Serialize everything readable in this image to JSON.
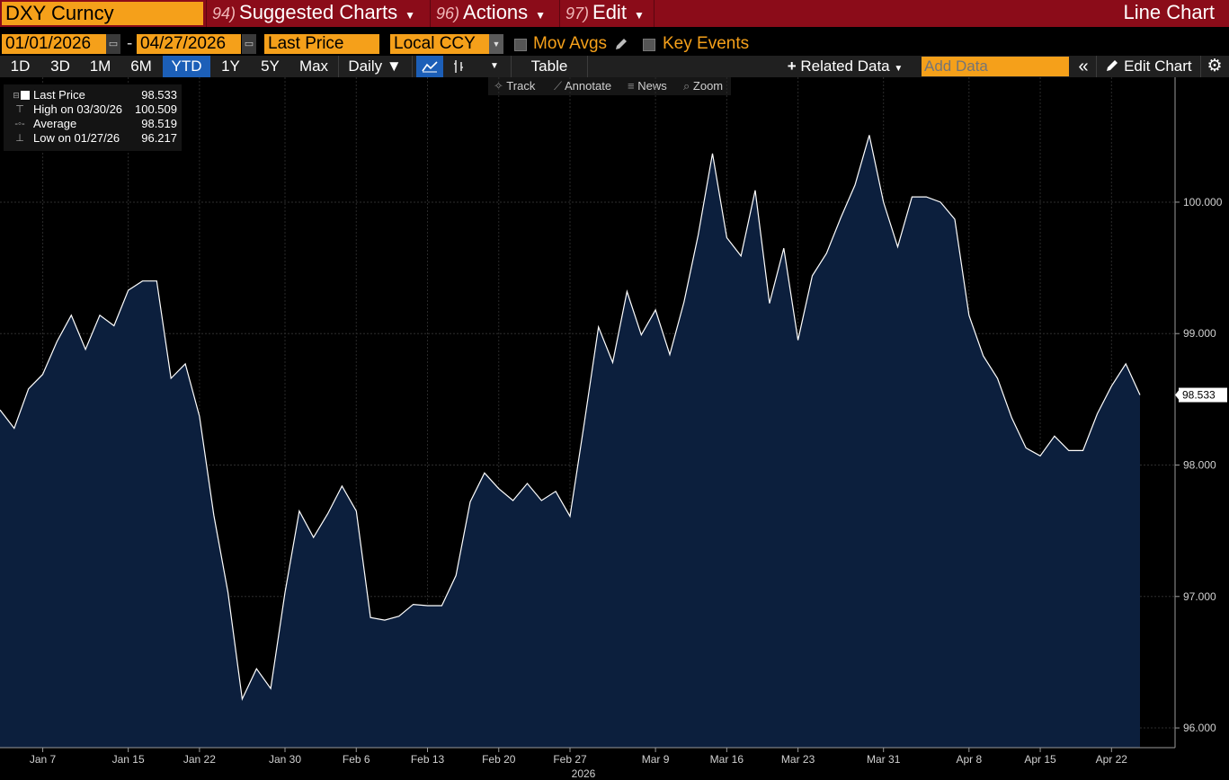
{
  "header": {
    "ticker": "DXY Curncy",
    "menus": [
      {
        "num": "94)",
        "label": "Suggested Charts"
      },
      {
        "num": "96)",
        "label": "Actions"
      },
      {
        "num": "97)",
        "label": "Edit"
      }
    ],
    "title": "Line Chart"
  },
  "params": {
    "start_date": "01/01/2026",
    "date_separator": "-",
    "end_date": "04/27/2026",
    "field": "Last Price",
    "currency": "Local CCY",
    "mov_avgs": "Mov Avgs",
    "key_events": "Key Events"
  },
  "toolbar": {
    "ranges": [
      "1D",
      "3D",
      "1M",
      "6M",
      "YTD",
      "1Y",
      "5Y",
      "Max"
    ],
    "selected_range": "YTD",
    "frequency": "Daily",
    "table": "Table",
    "related_data": "Related Data",
    "add_data_placeholder": "Add Data",
    "edit_chart": "Edit Chart"
  },
  "subtoolbar": {
    "track": "Track",
    "annotate": "Annotate",
    "news": "News",
    "zoom": "Zoom"
  },
  "legend": [
    {
      "label": "Last Price",
      "value": "98.533"
    },
    {
      "label": "High on 03/30/26",
      "value": "100.509"
    },
    {
      "label": "Average",
      "value": "98.519"
    },
    {
      "label": "Low on 01/27/26",
      "value": "96.217"
    }
  ],
  "colors": {
    "header_bg": "#8b0c19",
    "input_bg": "#f5a01a",
    "area_fill": "#0c1f3d",
    "line": "#ffffff",
    "selected": "#1c5fb8"
  },
  "icons": {
    "calendar": "calendar-icon",
    "pencil": "pencil-icon",
    "gear": "gear-icon",
    "collapse": "double-chevron-left-icon",
    "line_chart": "line-chart-icon",
    "candle": "candle-chart-icon"
  },
  "chart_data": {
    "type": "area",
    "x_year_label": "2026",
    "ylim": [
      95.85,
      100.95
    ],
    "y_ticks": [
      96,
      97,
      98,
      99,
      100
    ],
    "y_tick_labels": [
      "96.000",
      "97.000",
      "98.000",
      "99.000",
      "100.000"
    ],
    "last_value_label": "98.533",
    "x_ticks": [
      {
        "label": "Jan 7",
        "index": 3
      },
      {
        "label": "Jan 15",
        "index": 9
      },
      {
        "label": "Jan 22",
        "index": 14
      },
      {
        "label": "Jan 30",
        "index": 20
      },
      {
        "label": "Feb 6",
        "index": 25
      },
      {
        "label": "Feb 13",
        "index": 30
      },
      {
        "label": "Feb 20",
        "index": 35
      },
      {
        "label": "Feb 27",
        "index": 40
      },
      {
        "label": "Mar 9",
        "index": 46
      },
      {
        "label": "Mar 16",
        "index": 51
      },
      {
        "label": "Mar 23",
        "index": 56
      },
      {
        "label": "Mar 31",
        "index": 62
      },
      {
        "label": "Apr 8",
        "index": 68
      },
      {
        "label": "Apr 15",
        "index": 73
      },
      {
        "label": "Apr 22",
        "index": 78
      }
    ],
    "series": [
      {
        "values": [
          98.42,
          98.28,
          98.58,
          98.69,
          98.94,
          99.14,
          98.88,
          99.14,
          99.06,
          99.33,
          99.4,
          99.4,
          98.66,
          98.77,
          98.37,
          97.62,
          97.03,
          96.22,
          96.45,
          96.3,
          97.03,
          97.65,
          97.45,
          97.63,
          97.84,
          97.65,
          96.84,
          96.82,
          96.85,
          96.94,
          96.93,
          96.93,
          97.16,
          97.72,
          97.94,
          97.82,
          97.73,
          97.86,
          97.73,
          97.8,
          97.61,
          98.32,
          99.05,
          98.78,
          99.32,
          98.99,
          99.18,
          98.84,
          99.24,
          99.75,
          100.37,
          99.73,
          99.59,
          100.09,
          99.23,
          99.65,
          98.95,
          99.44,
          99.61,
          99.88,
          100.13,
          100.51,
          100.0,
          99.66,
          100.04,
          100.04,
          100.0,
          99.87,
          99.14,
          98.83,
          98.66,
          98.36,
          98.13,
          98.07,
          98.22,
          98.11,
          98.11,
          98.39,
          98.6,
          98.77,
          98.533
        ]
      }
    ]
  }
}
